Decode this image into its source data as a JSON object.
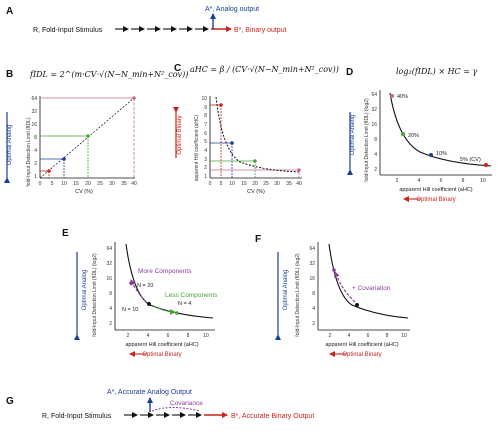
{
  "panels": {
    "A": {
      "label": "A",
      "input": "R, Fold-Input Stimulus",
      "analog": "A*, Analog output",
      "binary": "B*, Binary output"
    },
    "B": {
      "label": "B",
      "formula": "fIDL = 2^(m·CV·√(N−N_min+N²_cov))",
      "ylabel": "fold-Input Detection Limit (fIDL)",
      "xlabel": "CV (%)",
      "side": "Optimal Analog",
      "yticks": [
        "64",
        "32",
        "16",
        "8",
        "4",
        "2",
        "1"
      ],
      "xticks": [
        "0",
        "5",
        "10",
        "15",
        "20",
        "25",
        "30",
        "35",
        "40"
      ]
    },
    "C": {
      "label": "C",
      "formula": "aHC = β / (CV·√(N−N_min+N²_cov))",
      "ylabel": "apparent Hill coefficient (aHC)",
      "xlabel": "CV (%)",
      "side": "Optimal Binary",
      "yticks": [
        "10",
        "9",
        "8",
        "7",
        "6",
        "5",
        "4",
        "3",
        "2",
        "1"
      ],
      "xticks": [
        "0",
        "5",
        "10",
        "15",
        "20",
        "25",
        "30",
        "35",
        "40"
      ]
    },
    "D": {
      "label": "D",
      "formula": "log₂(fIDL) × HC = γ",
      "ylabel": "fold-Input Detection Limit (fIDL) (log2)",
      "xlabel": "apparent Hill coefficient (aHC)",
      "side_y": "Optimal Analog",
      "side_x": "Optimal Binary",
      "yticks": [
        "64",
        "32",
        "16",
        "8",
        "4",
        "2"
      ],
      "xticks": [
        "2",
        "4",
        "6",
        "8",
        "10"
      ],
      "points": [
        "40%",
        "20%",
        "10%",
        "5% (CV)"
      ]
    },
    "E": {
      "label": "E",
      "ylabel": "fold-Input Detection Limit (fIDL) (log2)",
      "xlabel": "apparent Hill coefficient (aHC)",
      "side_y": "Optimal Analog",
      "side_x": "Optimal Binary",
      "yticks": [
        "64",
        "32",
        "16",
        "8",
        "4",
        "2"
      ],
      "xticks": [
        "2",
        "4",
        "6",
        "8",
        "10"
      ],
      "more": "More Components",
      "less": "Less Components",
      "n20": "N = 20",
      "n4": "N = 4",
      "n10": "N = 10"
    },
    "F": {
      "label": "F",
      "ylabel": "fold-Input Detection Limit (fIDL) (log2)",
      "xlabel": "apparent Hill coefficient (aHC)",
      "side_y": "Optimal Analog",
      "side_x": "Optimal Binary",
      "yticks": [
        "64",
        "32",
        "16",
        "8",
        "4",
        "2"
      ],
      "xticks": [
        "2",
        "4",
        "6",
        "8",
        "10"
      ],
      "cov": "+ Covariation"
    },
    "G": {
      "label": "G",
      "input": "R, Fold-Input Stimulus",
      "analog": "A*, Accurate Analog Output",
      "cov": "Covariance",
      "binary": "B*, Accurate Binary Output"
    }
  },
  "colors": {
    "blue": "#1a3f99",
    "red": "#c9241c",
    "purple": "#8a3d9a",
    "green": "#4aa43a",
    "black": "#111111"
  }
}
